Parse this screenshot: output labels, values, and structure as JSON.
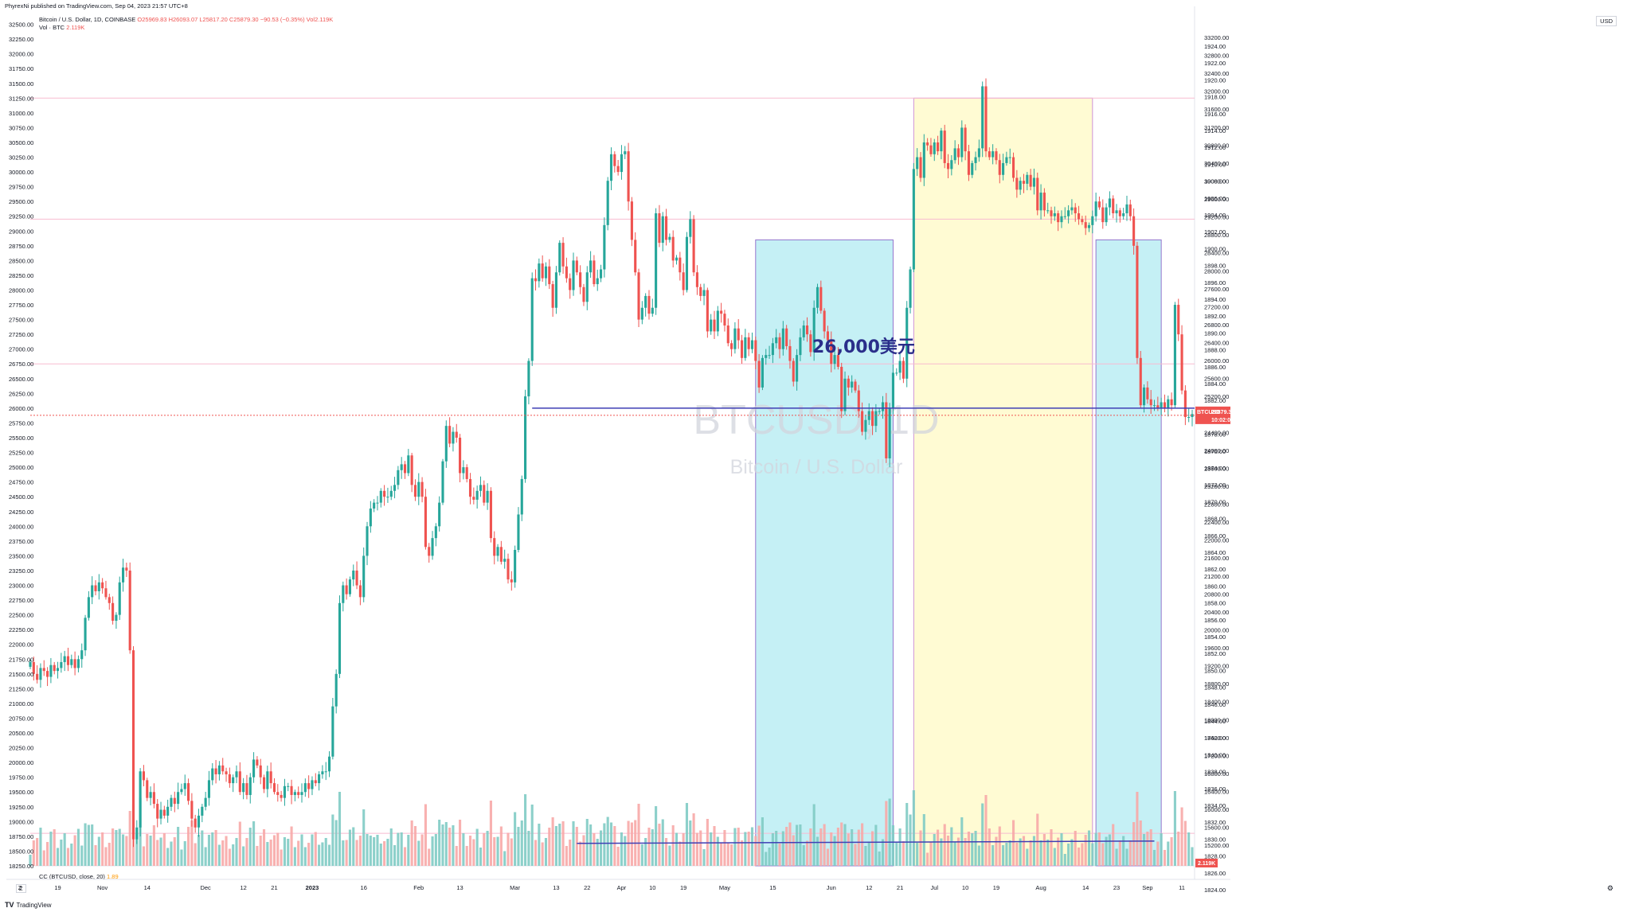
{
  "header": {
    "published": "PhyrexNi published on TradingView.com, Sep 04, 2023 21:57 UTC+8"
  },
  "legend": {
    "symbol": "Bitcoin / U.S. Dollar, 1D, COINBASE",
    "ohlc": "O25969.83  H26093.07  L25817.20  C25879.30  −90.53 (−0.35%)",
    "vol": "Vol2.119K",
    "vol_label": "Vol · BTC",
    "vol_value": "2.119K"
  },
  "cc_legend": {
    "label": "CC (BTCUSD, close, 20)",
    "value": "1.89"
  },
  "scale_unit": "USD",
  "watermark": {
    "title": "BTCUSD, 1D",
    "subtitle": "Bitcoin / U.S. Dollar"
  },
  "annotation": "26,000美元",
  "price_badge": {
    "symbol": "BTCUSD",
    "price": "25879.30",
    "countdown": "10:02:04"
  },
  "vol_badge": "2.119K",
  "footer": {
    "brand": "TradingView"
  },
  "corner": {
    "left": "Z",
    "right": "⚙"
  },
  "chart_data": {
    "type": "candlestick",
    "symbol": "BTCUSD",
    "interval": "1D",
    "x_range": [
      "2022-10-11",
      "2023-09-14"
    ],
    "ylim": [
      18250,
      32750
    ],
    "right_scale_lim": [
      1823,
      1926
    ],
    "left_ticks": [
      18250,
      18500,
      18750,
      19000,
      19250,
      19500,
      19750,
      20000,
      20250,
      20500,
      20750,
      21000,
      21250,
      21500,
      21750,
      22000,
      22250,
      22500,
      22750,
      23000,
      23250,
      23500,
      23750,
      24000,
      24250,
      24500,
      24750,
      25000,
      25250,
      25500,
      25750,
      26000,
      26250,
      26500,
      26750,
      27000,
      27250,
      27500,
      27750,
      28000,
      28250,
      28500,
      28750,
      29000,
      29250,
      29500,
      29750,
      30000,
      30250,
      30500,
      30750,
      31000,
      31250,
      31500,
      31750,
      32000,
      32250,
      32500
    ],
    "left_ticks_labels": [
      "18250.00",
      "18500.00",
      "18750.00",
      "19000.00",
      "19250.00",
      "19500.00",
      "19750.00",
      "20000.00",
      "20250.00",
      "20500.00",
      "20750.00",
      "21000.00",
      "21250.00",
      "21500.00",
      "21750.00",
      "22000.00",
      "22250.00",
      "22500.00",
      "22750.00",
      "23000.00",
      "23250.00",
      "23500.00",
      "23750.00",
      "24000.00",
      "24250.00",
      "24500.00",
      "24750.00",
      "25000.00",
      "25250.00",
      "25500.00",
      "25750.00",
      "26000.00",
      "26250.00",
      "26500.00",
      "26750.00",
      "27000.00",
      "27250.00",
      "27500.00",
      "27750.00",
      "28000.00",
      "28250.00",
      "28500.00",
      "28750.00",
      "29000.00",
      "29250.00",
      "29500.00",
      "29750.00",
      "30000.00",
      "30250.00",
      "30500.00",
      "30750.00",
      "31000.00",
      "31250.00",
      "31500.00",
      "31750.00",
      "32000.00",
      "32250.00",
      "32500.00"
    ],
    "right_ticks_top": [
      "33200.00",
      "32800.00",
      "32400.00",
      "32000.00",
      "31600.00",
      "31200.00",
      "30800.00",
      "30400.00",
      "30000.00",
      "29600.00",
      "29200.00",
      "28800.00",
      "28400.00",
      "28000.00",
      "27600.00",
      "27200.00",
      "26800.00",
      "26400.00",
      "26000.00",
      "25600.00",
      "25200.00",
      "24800.00",
      "24400.00",
      "24000.00",
      "23600.00",
      "23200.00",
      "22800.00",
      "22400.00",
      "22000.00",
      "21600.00",
      "21200.00",
      "20800.00",
      "20400.00",
      "20000.00",
      "19600.00",
      "19200.00",
      "18800.00",
      "18400.00",
      "18000.00",
      "17600.00",
      "17200.00",
      "16800.00",
      "16400.00",
      "16000.00",
      "15600.00",
      "15200.00"
    ],
    "right_ticks_inner": [
      "1924.00",
      "1922.00",
      "1920.00",
      "1918.00",
      "1916.00",
      "1914.00",
      "1912.00",
      "1910.00",
      "1908.00",
      "1906.00",
      "1904.00",
      "1902.00",
      "1900.00",
      "1898.00",
      "1896.00",
      "1894.00",
      "1892.00",
      "1890.00",
      "1888.00",
      "1886.00",
      "1884.00",
      "1882.00",
      "1880.00",
      "1878.00",
      "1876.00",
      "1874.00",
      "1872.00",
      "1870.00",
      "1868.00",
      "1866.00",
      "1864.00",
      "1862.00",
      "1860.00",
      "1858.00",
      "1856.00",
      "1854.00",
      "1852.00",
      "1850.00",
      "1848.00",
      "1846.00",
      "1844.00",
      "1842.00",
      "1840.00",
      "1838.00",
      "1836.00",
      "1834.00",
      "1832.00",
      "1830.00",
      "1828.00",
      "1826.00",
      "1824.00"
    ],
    "x_labels": [
      "Z",
      "19",
      "Nov",
      "14",
      "Dec",
      "12",
      "21",
      "2023",
      "16",
      "Feb",
      "13",
      "Mar",
      "13",
      "22",
      "Apr",
      "10",
      "19",
      "May",
      "15",
      "Jun",
      "12",
      "21",
      "Jul",
      "10",
      "19",
      "Aug",
      "14",
      "23",
      "Sep",
      "11"
    ],
    "x_label_dates": [
      "2022-10-10",
      "2022-10-19",
      "2022-11-01",
      "2022-11-14",
      "2022-12-01",
      "2022-12-12",
      "2022-12-21",
      "2023-01-01",
      "2023-01-16",
      "2023-02-01",
      "2023-02-13",
      "2023-03-01",
      "2023-03-13",
      "2023-03-22",
      "2023-04-01",
      "2023-04-10",
      "2023-04-19",
      "2023-05-01",
      "2023-05-15",
      "2023-06-01",
      "2023-06-12",
      "2023-06-21",
      "2023-07-01",
      "2023-07-10",
      "2023-07-19",
      "2023-08-01",
      "2023-08-14",
      "2023-08-23",
      "2023-09-01",
      "2023-09-11"
    ],
    "start_date": "2022-10-11",
    "closes": [
      21700,
      21500,
      21400,
      21600,
      21550,
      21450,
      21650,
      21550,
      21600,
      21700,
      21800,
      21650,
      21750,
      21600,
      21750,
      21900,
      22450,
      22800,
      23000,
      22900,
      23050,
      22950,
      22800,
      22700,
      22400,
      22500,
      23050,
      23300,
      23250,
      21900,
      18700,
      18900,
      19850,
      19700,
      19400,
      19500,
      19300,
      19050,
      19200,
      19100,
      19250,
      19400,
      19300,
      19500,
      19550,
      19650,
      19350,
      19050,
      18900,
      19100,
      19250,
      19400,
      19700,
      19900,
      19800,
      19950,
      19850,
      19800,
      19650,
      19750,
      19850,
      19500,
      19650,
      19450,
      19750,
      20050,
      19950,
      19750,
      19550,
      19850,
      19650,
      19500,
      19450,
      19400,
      19600,
      19600,
      19450,
      19500,
      19450,
      19500,
      19650,
      19550,
      19700,
      19650,
      19800,
      19850,
      19850,
      20100,
      20950,
      21500,
      22700,
      23000,
      22850,
      23100,
      23250,
      23000,
      22800,
      23500,
      24000,
      24300,
      24400,
      24400,
      24600,
      24500,
      24500,
      24600,
      24700,
      24950,
      25050,
      24900,
      25200,
      24700,
      24500,
      24750,
      24500,
      23650,
      23500,
      23800,
      24000,
      24400,
      25100,
      25700,
      25400,
      25600,
      25500,
      24900,
      25000,
      24800,
      24500,
      24450,
      24600,
      24700,
      24400,
      24600,
      23800,
      23500,
      23650,
      23400,
      23450,
      23100,
      23050,
      23600,
      24200,
      24800,
      26200,
      26800,
      28200,
      28150,
      28450,
      28200,
      28400,
      28100,
      27700,
      28300,
      28800,
      28400,
      28200,
      28000,
      28500,
      28300,
      28050,
      27800,
      28300,
      28500,
      28100,
      28200,
      28350,
      29100,
      29850,
      30300,
      30100,
      30000,
      30300,
      30350,
      29500,
      28850,
      28300,
      27500,
      27700,
      27900,
      27600,
      27700,
      29300,
      28800,
      29250,
      28850,
      28900,
      28500,
      28550,
      28300,
      28000,
      28900,
      29200,
      28300,
      28050,
      27900,
      28000,
      27300,
      27500,
      27300,
      27650,
      27600,
      27400,
      27100,
      27000,
      27350,
      27150,
      26850,
      27200,
      27000,
      27150,
      26800,
      26350,
      26850,
      26900,
      26900,
      27100,
      27200,
      27000,
      27350,
      27050,
      26800,
      26450,
      26900,
      27200,
      27400,
      27250,
      26950,
      27700,
      28050,
      27650,
      27300,
      27150,
      26750,
      26900,
      26700,
      25950,
      26500,
      26350,
      26450,
      26300,
      25950,
      25600,
      25800,
      25950,
      25700,
      25950,
      25950,
      26100,
      25150,
      26000,
      26600,
      26600,
      26800,
      26500,
      27700,
      28350,
      30050,
      30250,
      29900,
      30500,
      30450,
      30300,
      30500,
      30350,
      30700,
      30150,
      30050,
      30200,
      30400,
      30250,
      30750,
      30350,
      29950,
      30150,
      30250,
      30400,
      31450,
      30350,
      30250,
      30350,
      30200,
      29950,
      30150,
      30250,
      30250,
      29900,
      29700,
      29850,
      29800,
      29950,
      29750,
      29900,
      29350,
      29650,
      29350,
      29350,
      29250,
      29300,
      29150,
      29250,
      29250,
      29350,
      29400,
      29300,
      29200,
      29150,
      29050,
      29100,
      29250,
      29500,
      29400,
      29150,
      29400,
      29550,
      29300,
      29350,
      29250,
      29300,
      29450,
      29250,
      28750,
      26850,
      26050,
      26350,
      26150,
      26050,
      26050,
      26000,
      26100,
      26000,
      26150,
      26050,
      27750,
      27250,
      26300,
      25850,
      25850,
      25900
    ]
  }
}
